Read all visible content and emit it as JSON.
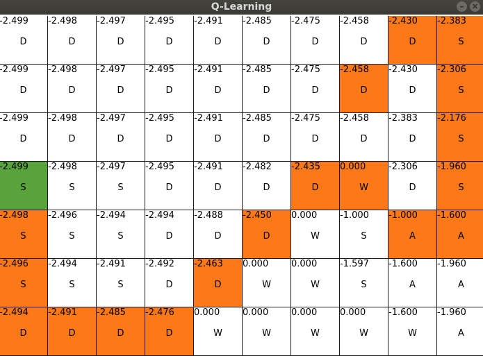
{
  "window": {
    "title": "Q-Learning"
  },
  "grid": {
    "rows": [
      [
        {
          "value": "-2.499",
          "action": "D",
          "color": "white"
        },
        {
          "value": "-2.498",
          "action": "D",
          "color": "white"
        },
        {
          "value": "-2.497",
          "action": "D",
          "color": "white"
        },
        {
          "value": "-2.495",
          "action": "D",
          "color": "white"
        },
        {
          "value": "-2.491",
          "action": "D",
          "color": "white"
        },
        {
          "value": "-2.485",
          "action": "D",
          "color": "white"
        },
        {
          "value": "-2.475",
          "action": "D",
          "color": "white"
        },
        {
          "value": "-2.458",
          "action": "D",
          "color": "white"
        },
        {
          "value": "-2.430",
          "action": "D",
          "color": "orange"
        },
        {
          "value": "-2.383",
          "action": "S",
          "color": "orange"
        }
      ],
      [
        {
          "value": "-2.499",
          "action": "D",
          "color": "white"
        },
        {
          "value": "-2.498",
          "action": "D",
          "color": "white"
        },
        {
          "value": "-2.497",
          "action": "D",
          "color": "white"
        },
        {
          "value": "-2.495",
          "action": "D",
          "color": "white"
        },
        {
          "value": "-2.491",
          "action": "D",
          "color": "white"
        },
        {
          "value": "-2.485",
          "action": "D",
          "color": "white"
        },
        {
          "value": "-2.475",
          "action": "D",
          "color": "white"
        },
        {
          "value": "-2.458",
          "action": "D",
          "color": "orange"
        },
        {
          "value": "-2.430",
          "action": "D",
          "color": "white"
        },
        {
          "value": "-2.306",
          "action": "S",
          "color": "orange"
        }
      ],
      [
        {
          "value": "-2.499",
          "action": "D",
          "color": "white"
        },
        {
          "value": "-2.498",
          "action": "D",
          "color": "white"
        },
        {
          "value": "-2.497",
          "action": "D",
          "color": "white"
        },
        {
          "value": "-2.495",
          "action": "D",
          "color": "white"
        },
        {
          "value": "-2.491",
          "action": "D",
          "color": "white"
        },
        {
          "value": "-2.485",
          "action": "D",
          "color": "white"
        },
        {
          "value": "-2.475",
          "action": "D",
          "color": "white"
        },
        {
          "value": "-2.458",
          "action": "D",
          "color": "white"
        },
        {
          "value": "-2.383",
          "action": "D",
          "color": "white"
        },
        {
          "value": "-2.176",
          "action": "S",
          "color": "orange"
        }
      ],
      [
        {
          "value": "-2.499",
          "action": "S",
          "color": "green"
        },
        {
          "value": "-2.498",
          "action": "S",
          "color": "white"
        },
        {
          "value": "-2.497",
          "action": "S",
          "color": "white"
        },
        {
          "value": "-2.495",
          "action": "D",
          "color": "white"
        },
        {
          "value": "-2.491",
          "action": "D",
          "color": "white"
        },
        {
          "value": "-2.482",
          "action": "D",
          "color": "white"
        },
        {
          "value": "-2.435",
          "action": "D",
          "color": "orange"
        },
        {
          "value": "0.000",
          "action": "W",
          "color": "orange"
        },
        {
          "value": "-2.306",
          "action": "D",
          "color": "white"
        },
        {
          "value": "-1.960",
          "action": "S",
          "color": "orange"
        }
      ],
      [
        {
          "value": "-2.498",
          "action": "S",
          "color": "orange"
        },
        {
          "value": "-2.496",
          "action": "S",
          "color": "white"
        },
        {
          "value": "-2.494",
          "action": "S",
          "color": "white"
        },
        {
          "value": "-2.494",
          "action": "D",
          "color": "white"
        },
        {
          "value": "-2.488",
          "action": "D",
          "color": "white"
        },
        {
          "value": "-2.450",
          "action": "D",
          "color": "orange"
        },
        {
          "value": "0.000",
          "action": "W",
          "color": "white"
        },
        {
          "value": "-1.000",
          "action": "S",
          "color": "white"
        },
        {
          "value": "-1.000",
          "action": "A",
          "color": "orange"
        },
        {
          "value": "-1.600",
          "action": "A",
          "color": "orange"
        }
      ],
      [
        {
          "value": "-2.496",
          "action": "S",
          "color": "orange"
        },
        {
          "value": "-2.494",
          "action": "S",
          "color": "white"
        },
        {
          "value": "-2.491",
          "action": "S",
          "color": "white"
        },
        {
          "value": "-2.492",
          "action": "D",
          "color": "white"
        },
        {
          "value": "-2.463",
          "action": "D",
          "color": "orange"
        },
        {
          "value": "0.000",
          "action": "W",
          "color": "white"
        },
        {
          "value": "0.000",
          "action": "W",
          "color": "white"
        },
        {
          "value": "-1.597",
          "action": "S",
          "color": "white"
        },
        {
          "value": "-1.600",
          "action": "A",
          "color": "white"
        },
        {
          "value": "-1.960",
          "action": "A",
          "color": "white"
        }
      ],
      [
        {
          "value": "-2.494",
          "action": "D",
          "color": "orange"
        },
        {
          "value": "-2.491",
          "action": "D",
          "color": "orange"
        },
        {
          "value": "-2.485",
          "action": "D",
          "color": "orange"
        },
        {
          "value": "-2.476",
          "action": "D",
          "color": "orange"
        },
        {
          "value": "0.000",
          "action": "W",
          "color": "white"
        },
        {
          "value": "0.000",
          "action": "W",
          "color": "white"
        },
        {
          "value": "0.000",
          "action": "W",
          "color": "white"
        },
        {
          "value": "0.000",
          "action": "W",
          "color": "white"
        },
        {
          "value": "-1.600",
          "action": "W",
          "color": "white"
        },
        {
          "value": "-1.960",
          "action": "A",
          "color": "white"
        }
      ]
    ]
  },
  "colors": {
    "orange": "#fd7817",
    "green": "#58a33b",
    "white": "#ffffff",
    "titlebar": "#3d3c38"
  }
}
